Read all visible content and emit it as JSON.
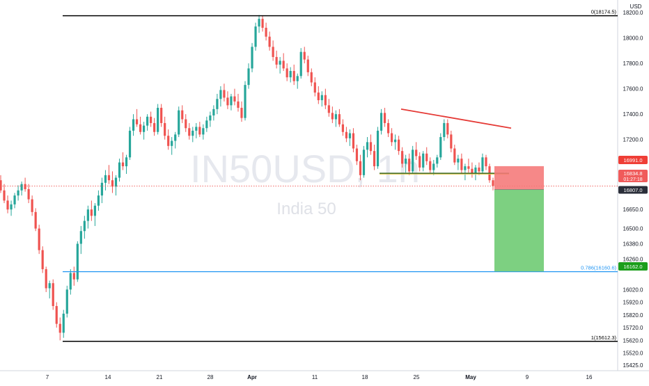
{
  "currency_label": "USD",
  "watermark": {
    "symbol": "IN50USD, 1h",
    "name": "India 50"
  },
  "chart_data": {
    "type": "candlestick",
    "title": "",
    "y_axis": {
      "position": "right",
      "range": [
        15380,
        18240
      ],
      "ticks": [
        "18200.0",
        "18000.0",
        "17800.0",
        "17600.0",
        "17400.0",
        "17200.0",
        "16650.0",
        "16500.0",
        "16380.0",
        "16260.0",
        "16020.0",
        "15920.0",
        "15820.0",
        "15720.0",
        "15620.0",
        "15520.0",
        "15425.0"
      ]
    },
    "x_axis": {
      "ticks": [
        "7",
        "14",
        "21",
        "28",
        "Apr",
        "11",
        "18",
        "25",
        "May",
        "9",
        "16"
      ]
    },
    "candles": [
      [
        16950,
        16980,
        16850,
        16880
      ],
      [
        16880,
        16920,
        16780,
        16800
      ],
      [
        16800,
        16850,
        16700,
        16720
      ],
      [
        16720,
        16760,
        16620,
        16650
      ],
      [
        16650,
        16720,
        16600,
        16690
      ],
      [
        16690,
        16780,
        16660,
        16760
      ],
      [
        16760,
        16840,
        16720,
        16800
      ],
      [
        16800,
        16870,
        16760,
        16850
      ],
      [
        16850,
        16900,
        16790,
        16810
      ],
      [
        16810,
        16850,
        16700,
        16730
      ],
      [
        16730,
        16760,
        16600,
        16630
      ],
      [
        16630,
        16660,
        16480,
        16500
      ],
      [
        16500,
        16530,
        16300,
        16330
      ],
      [
        16330,
        16360,
        16150,
        16180
      ],
      [
        16180,
        16200,
        16000,
        16030
      ],
      [
        16030,
        16090,
        15950,
        16070
      ],
      [
        16070,
        16100,
        15860,
        15890
      ],
      [
        15890,
        15920,
        15720,
        15750
      ],
      [
        15750,
        15800,
        15620,
        15680
      ],
      [
        15680,
        15860,
        15640,
        15830
      ],
      [
        15830,
        16050,
        15800,
        16020
      ],
      [
        16020,
        16180,
        15980,
        16150
      ],
      [
        16150,
        16200,
        16050,
        16100
      ],
      [
        16100,
        16400,
        16080,
        16380
      ],
      [
        16380,
        16520,
        16300,
        16480
      ],
      [
        16480,
        16600,
        16420,
        16560
      ],
      [
        16560,
        16680,
        16500,
        16650
      ],
      [
        16650,
        16720,
        16560,
        16600
      ],
      [
        16600,
        16700,
        16520,
        16680
      ],
      [
        16680,
        16800,
        16640,
        16760
      ],
      [
        16760,
        16900,
        16700,
        16860
      ],
      [
        16860,
        16960,
        16800,
        16920
      ],
      [
        16920,
        17000,
        16850,
        16880
      ],
      [
        16880,
        16950,
        16780,
        16830
      ],
      [
        16830,
        16920,
        16760,
        16900
      ],
      [
        16900,
        17050,
        16870,
        17020
      ],
      [
        17020,
        17100,
        16960,
        16990
      ],
      [
        16990,
        17080,
        16930,
        17060
      ],
      [
        17060,
        17300,
        17040,
        17270
      ],
      [
        17270,
        17400,
        17230,
        17360
      ],
      [
        17360,
        17440,
        17300,
        17320
      ],
      [
        17320,
        17380,
        17240,
        17260
      ],
      [
        17260,
        17340,
        17200,
        17310
      ],
      [
        17310,
        17400,
        17270,
        17380
      ],
      [
        17380,
        17420,
        17300,
        17330
      ],
      [
        17330,
        17370,
        17230,
        17260
      ],
      [
        17260,
        17480,
        17240,
        17450
      ],
      [
        17450,
        17480,
        17300,
        17330
      ],
      [
        17330,
        17380,
        17200,
        17230
      ],
      [
        17230,
        17280,
        17120,
        17150
      ],
      [
        17150,
        17220,
        17080,
        17190
      ],
      [
        17190,
        17260,
        17130,
        17240
      ],
      [
        17240,
        17460,
        17220,
        17430
      ],
      [
        17430,
        17470,
        17330,
        17360
      ],
      [
        17360,
        17400,
        17260,
        17290
      ],
      [
        17290,
        17330,
        17200,
        17230
      ],
      [
        17230,
        17300,
        17180,
        17270
      ],
      [
        17270,
        17330,
        17210,
        17300
      ],
      [
        17300,
        17340,
        17220,
        17240
      ],
      [
        17240,
        17320,
        17200,
        17290
      ],
      [
        17290,
        17380,
        17260,
        17350
      ],
      [
        17350,
        17420,
        17300,
        17390
      ],
      [
        17390,
        17470,
        17350,
        17440
      ],
      [
        17440,
        17560,
        17400,
        17520
      ],
      [
        17520,
        17620,
        17460,
        17590
      ],
      [
        17590,
        17640,
        17500,
        17530
      ],
      [
        17530,
        17580,
        17440,
        17470
      ],
      [
        17470,
        17560,
        17430,
        17540
      ],
      [
        17540,
        17600,
        17470,
        17500
      ],
      [
        17500,
        17560,
        17420,
        17450
      ],
      [
        17450,
        17500,
        17340,
        17370
      ],
      [
        17370,
        17660,
        17350,
        17630
      ],
      [
        17630,
        17800,
        17600,
        17760
      ],
      [
        17760,
        17960,
        17730,
        17930
      ],
      [
        17930,
        18120,
        17900,
        18090
      ],
      [
        18090,
        18180,
        18040,
        18150
      ],
      [
        18150,
        18174,
        18050,
        18080
      ],
      [
        18080,
        18120,
        17980,
        18010
      ],
      [
        18010,
        18050,
        17900,
        17930
      ],
      [
        17930,
        17980,
        17820,
        17850
      ],
      [
        17850,
        17900,
        17760,
        17790
      ],
      [
        17790,
        17850,
        17720,
        17820
      ],
      [
        17820,
        17880,
        17740,
        17760
      ],
      [
        17760,
        17800,
        17660,
        17690
      ],
      [
        17690,
        17770,
        17650,
        17740
      ],
      [
        17740,
        17790,
        17630,
        17660
      ],
      [
        17660,
        17720,
        17600,
        17700
      ],
      [
        17700,
        17920,
        17680,
        17890
      ],
      [
        17890,
        17930,
        17800,
        17830
      ],
      [
        17830,
        17860,
        17700,
        17730
      ],
      [
        17730,
        17760,
        17620,
        17650
      ],
      [
        17650,
        17690,
        17540,
        17570
      ],
      [
        17570,
        17620,
        17480,
        17510
      ],
      [
        17510,
        17580,
        17460,
        17550
      ],
      [
        17550,
        17600,
        17440,
        17470
      ],
      [
        17470,
        17520,
        17380,
        17410
      ],
      [
        17410,
        17460,
        17330,
        17360
      ],
      [
        17360,
        17430,
        17300,
        17400
      ],
      [
        17400,
        17440,
        17300,
        17320
      ],
      [
        17320,
        17360,
        17230,
        17260
      ],
      [
        17260,
        17300,
        17180,
        17210
      ],
      [
        17210,
        17280,
        17150,
        17250
      ],
      [
        17250,
        17290,
        17100,
        17130
      ],
      [
        17130,
        17160,
        17000,
        17030
      ],
      [
        17030,
        17080,
        16880,
        16920
      ],
      [
        16920,
        17150,
        16900,
        17120
      ],
      [
        17120,
        17220,
        17060,
        17180
      ],
      [
        17180,
        17240,
        17080,
        17110
      ],
      [
        17110,
        17160,
        16960,
        16990
      ],
      [
        16990,
        17300,
        16970,
        17270
      ],
      [
        17270,
        17440,
        17240,
        17410
      ],
      [
        17410,
        17450,
        17300,
        17330
      ],
      [
        17330,
        17360,
        17220,
        17250
      ],
      [
        17250,
        17290,
        17150,
        17180
      ],
      [
        17180,
        17240,
        17120,
        17200
      ],
      [
        17200,
        17230,
        17080,
        17110
      ],
      [
        17110,
        17140,
        16980,
        17010
      ],
      [
        17010,
        17080,
        16940,
        17050
      ],
      [
        17050,
        17090,
        16920,
        16950
      ],
      [
        16950,
        17150,
        16930,
        17120
      ],
      [
        17120,
        17180,
        17040,
        17070
      ],
      [
        17070,
        17100,
        16950,
        16980
      ],
      [
        16980,
        17110,
        16950,
        17090
      ],
      [
        17090,
        17140,
        17000,
        17030
      ],
      [
        17030,
        17060,
        16940,
        16960
      ],
      [
        16960,
        17040,
        16920,
        17010
      ],
      [
        17010,
        17080,
        16980,
        17060
      ],
      [
        17060,
        17250,
        17040,
        17220
      ],
      [
        17220,
        17360,
        17190,
        17330
      ],
      [
        17330,
        17360,
        17210,
        17240
      ],
      [
        17240,
        17270,
        17100,
        17130
      ],
      [
        17130,
        17160,
        17000,
        17020
      ],
      [
        17020,
        17080,
        16960,
        17050
      ],
      [
        17050,
        17090,
        16930,
        16960
      ],
      [
        16960,
        17010,
        16880,
        16990
      ],
      [
        16990,
        17050,
        16940,
        16970
      ],
      [
        16970,
        17020,
        16900,
        16930
      ],
      [
        16930,
        17000,
        16880,
        16980
      ],
      [
        16980,
        17020,
        16920,
        16950
      ],
      [
        16950,
        17090,
        16930,
        17060
      ],
      [
        17060,
        17080,
        16960,
        16990
      ],
      [
        16990,
        17010,
        16860,
        16880
      ],
      [
        16880,
        16900,
        16800,
        16835
      ]
    ],
    "drawings": {
      "fib_levels": [
        {
          "label": "0(18174.5)",
          "value": 18174.5,
          "color": "#000000"
        },
        {
          "label": "0.786(16160.6)",
          "value": 16160.6,
          "color": "#2196f3"
        },
        {
          "label": "1(15612.3)",
          "value": 15612.3,
          "color": "#000000"
        }
      ],
      "trendline": {
        "from": 17440,
        "to": 17290,
        "color": "#e53935"
      },
      "support": {
        "value": 16935,
        "color": "#3a6b2a"
      },
      "short_position": {
        "entry": 16807.0,
        "stop": 16991.0,
        "target": 16162.0
      }
    },
    "price_labels": [
      {
        "text": "16991.0",
        "value": 16991.0,
        "bg": "#ef3e36",
        "fg": "#ffffff"
      },
      {
        "text": "16834.8",
        "sub": "01:27:18",
        "value": 16834.8,
        "bg": "#f05b5b",
        "fg": "#ffffff"
      },
      {
        "text": "16807.0",
        "value": 16807.0,
        "bg": "#2a2e39",
        "fg": "#ffffff"
      },
      {
        "text": "16162.0",
        "value": 16162.0,
        "bg": "#1b9e1b",
        "fg": "#ffffff"
      }
    ],
    "colors": {
      "up": "#26a69a",
      "down": "#ef5350"
    }
  }
}
